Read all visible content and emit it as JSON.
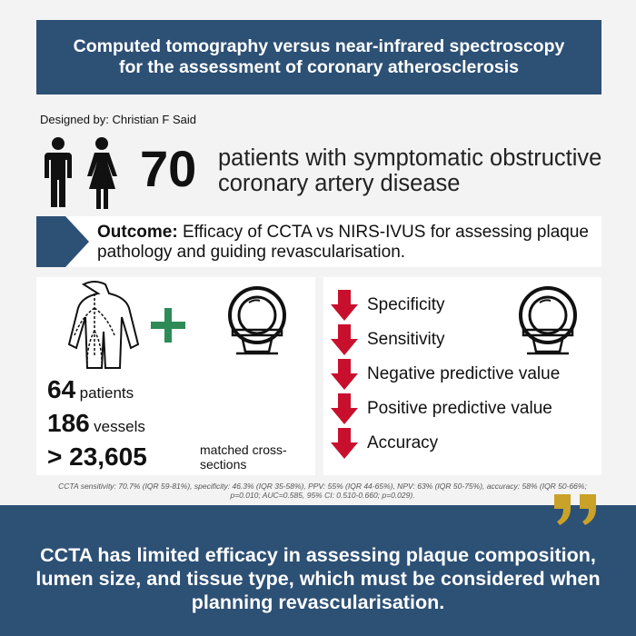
{
  "title": "Computed tomography versus near-infrared spectroscopy for the assessment of coronary atherosclerosis",
  "designed_by": "Designed by: Christian F Said",
  "patients": {
    "number": "70",
    "description": "patients with symptomatic obstructive coronary artery disease"
  },
  "outcome": {
    "label": "Outcome:",
    "text": " Efficacy of CCTA vs NIRS-IVUS for assessing plaque pathology and guiding revascularisation."
  },
  "left_panel": {
    "patients_num": "64",
    "patients_label": "patients",
    "vessels_num": "186",
    "vessels_label": "vessels",
    "sections_num": "> 23,605",
    "sections_label": "matched cross-sections"
  },
  "right_panel": {
    "metrics": [
      "Specificity",
      "Sensitivity",
      "Negative predictive value",
      "Positive predictive value",
      "Accuracy"
    ]
  },
  "footnote": "CCTA sensitivity:  70.7% (IQR 59-81%), specificity: 46.3% (IQR 35-58%), PPV: 55% (IQR 44-65%), NPV: 63% (IQR 50-75%), accuracy: 58% (IQR 50-66%; p=0.010; AUC=0.585, 95% CI: 0.510-0.660; p=0.029).",
  "conclusion": "CCTA has limited efficacy in assessing plaque composition, lumen size, and tissue type, which must be considered when planning revascularisation.",
  "colors": {
    "navy": "#2d5075",
    "green": "#2e8b57",
    "red": "#c8102e",
    "gold": "#c9a227"
  },
  "icons": [
    "male-person-icon",
    "female-person-icon",
    "body-vessels-icon",
    "plus-icon",
    "ct-scanner-icon",
    "down-arrow-icon",
    "quote-icon"
  ]
}
